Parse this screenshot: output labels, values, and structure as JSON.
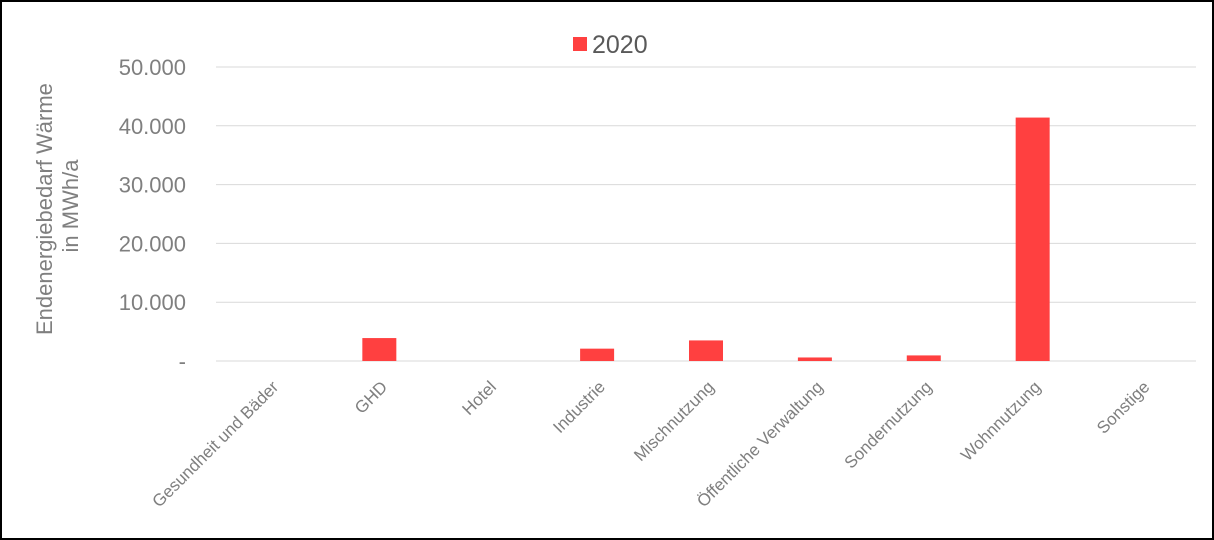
{
  "chart_data": {
    "type": "bar",
    "ylabel_line1": "Endenergiebedarf Wärme",
    "ylabel_line2": "in MWh/a",
    "categories": [
      "Gesundheit und Bäder",
      "GHD",
      "Hotel",
      "Industrie",
      "Mischnutzung",
      "Öffentliche Verwaltung",
      "Sondernutzung",
      "Wohnnutzung",
      "Sonstige"
    ],
    "series": [
      {
        "name": "2020",
        "color": "#ff4040",
        "values": [
          0,
          3900,
          0,
          2100,
          3500,
          600,
          950,
          41400,
          0
        ]
      }
    ],
    "ylim": [
      0,
      50000
    ],
    "yticks": [
      0,
      10000,
      20000,
      30000,
      40000,
      50000
    ],
    "ytick_labels": [
      "-",
      "10.000",
      "20.000",
      "30.000",
      "40.000",
      "50.000"
    ],
    "grid": true,
    "legend_position": "top"
  }
}
